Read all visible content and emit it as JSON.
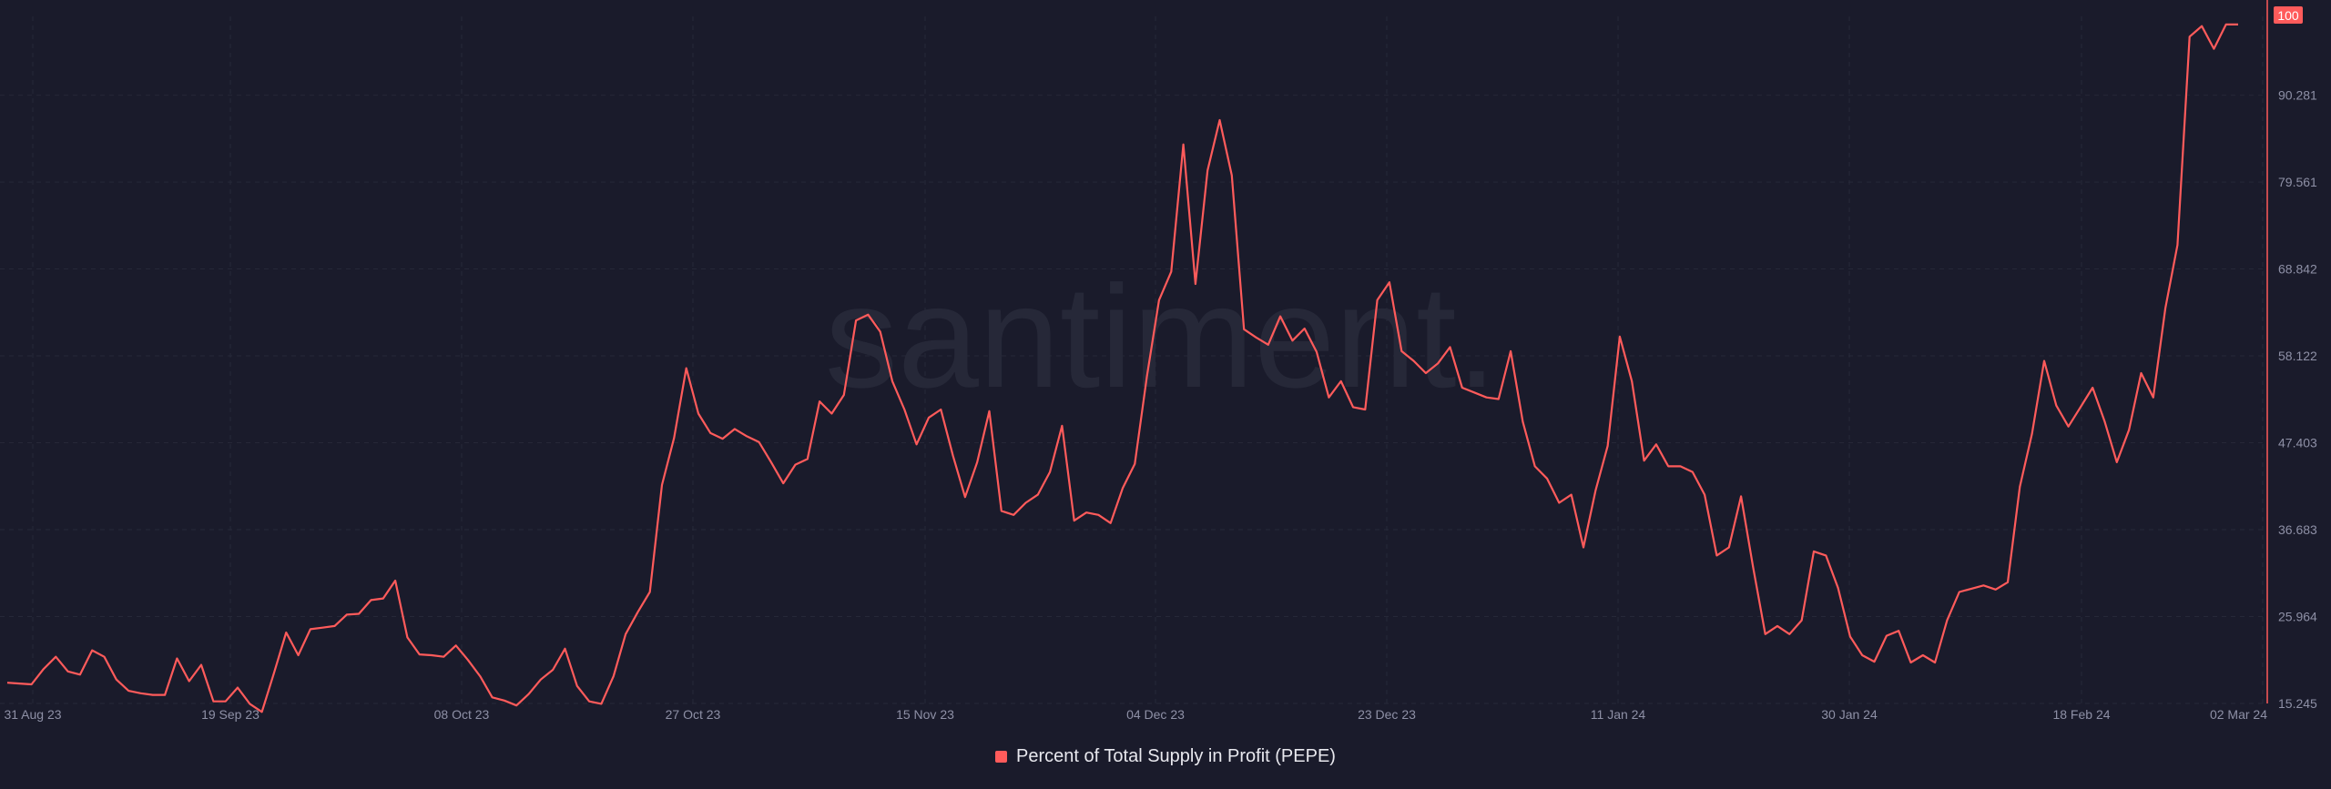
{
  "brand": {
    "watermark": "santiment."
  },
  "colors": {
    "background": "#1a1b2b",
    "grid": "#262838",
    "series": "#ff5b5b",
    "axis_text": "#8e90a6",
    "watermark": "#262838",
    "badge_text": "#ffffff"
  },
  "chart_data": {
    "type": "line",
    "title": "",
    "xlabel": "",
    "ylabel": "",
    "ylim": [
      15.245,
      100
    ],
    "y_axis_position": "right",
    "grid": true,
    "legend_position": "bottom-center",
    "y_ticks": [
      "90.281",
      "79.561",
      "68.842",
      "58.122",
      "47.403",
      "36.683",
      "25.964",
      "15.245"
    ],
    "x_ticks": [
      "31 Aug 23",
      "19 Sep 23",
      "08 Oct 23",
      "27 Oct 23",
      "15 Nov 23",
      "04 Dec 23",
      "23 Dec 23",
      "11 Jan 24",
      "30 Jan 24",
      "18 Feb 24",
      "02 Mar 24"
    ],
    "x_start": "2023-08-31",
    "x_end": "2024-03-02",
    "current_value_label": "100",
    "series": [
      {
        "name": "Percent of Total Supply in Profit (PEPE)",
        "color": "#ff5b5b",
        "values": [
          17.8,
          17.7,
          17.6,
          19.5,
          21.0,
          19.2,
          18.8,
          21.8,
          21.0,
          18.2,
          16.8,
          16.5,
          16.3,
          16.3,
          20.8,
          18.0,
          20.0,
          15.5,
          15.5,
          17.2,
          15.2,
          14.2,
          19.0,
          24.0,
          21.2,
          24.4,
          24.6,
          24.8,
          26.2,
          26.3,
          28.0,
          28.2,
          30.4,
          23.4,
          21.3,
          21.2,
          21.0,
          22.4,
          20.6,
          18.6,
          16.0,
          15.6,
          15.0,
          16.4,
          18.2,
          19.4,
          22.0,
          17.4,
          15.5,
          15.2,
          18.6,
          23.8,
          26.5,
          29.0,
          42.2,
          48.0,
          56.6,
          51.0,
          48.6,
          47.9,
          49.1,
          48.2,
          47.5,
          45.0,
          42.4,
          44.7,
          45.4,
          52.5,
          51.0,
          53.3,
          62.5,
          63.2,
          61.1,
          55.0,
          51.5,
          47.2,
          50.5,
          51.5,
          45.8,
          40.7,
          45.0,
          51.3,
          39.0,
          38.5,
          40.0,
          41.0,
          43.8,
          49.5,
          37.8,
          38.8,
          38.5,
          37.5,
          41.8,
          44.8,
          55.6,
          65.0,
          68.5,
          84.2,
          67.0,
          81.0,
          87.2,
          80.4,
          61.4,
          60.4,
          59.5,
          63.0,
          60.0,
          61.5,
          58.6,
          53.0,
          55.0,
          51.8,
          51.5,
          65.0,
          67.2,
          58.7,
          57.5,
          56.0,
          57.2,
          59.2,
          54.2,
          53.6,
          53.0,
          52.8,
          58.7,
          50.0,
          44.5,
          43.0,
          40.0,
          41.0,
          34.5,
          41.5,
          47.0,
          60.5,
          55.0,
          45.2,
          47.2,
          44.5,
          44.5,
          43.8,
          41.0,
          33.5,
          34.5,
          40.8,
          32.0,
          23.8,
          24.8,
          23.8,
          25.5,
          34.0,
          33.5,
          29.5,
          23.5,
          21.2,
          20.4,
          23.6,
          24.2,
          20.3,
          21.2,
          20.3,
          25.5,
          29.0,
          29.4,
          29.8,
          29.3,
          30.2,
          42.0,
          48.5,
          57.5,
          52.0,
          49.4,
          51.8,
          54.2,
          50.0,
          45.0,
          49.0,
          56.0,
          53.0,
          64.0,
          71.8,
          97.5,
          98.8,
          96.0,
          99.0,
          99.0
        ]
      }
    ]
  }
}
